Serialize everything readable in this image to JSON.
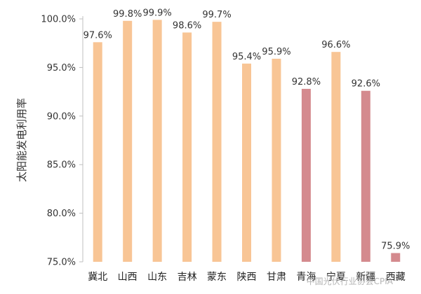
{
  "chart_data": {
    "type": "bar",
    "ylabel": "太阳能发电利用率",
    "ylim": [
      75,
      100
    ],
    "yticks": [
      75,
      80,
      85,
      90,
      95,
      100
    ],
    "ytick_labels": [
      "75.0%",
      "80.0%",
      "85.0%",
      "90.0%",
      "95.0%",
      "100.0%"
    ],
    "categories": [
      "冀北",
      "山西",
      "山东",
      "吉林",
      "蒙东",
      "陕西",
      "甘肃",
      "青海",
      "宁夏",
      "新疆",
      "西藏"
    ],
    "values": [
      97.6,
      99.8,
      99.9,
      98.6,
      99.7,
      95.4,
      95.9,
      92.8,
      96.6,
      92.6,
      75.9
    ],
    "value_labels": [
      "97.6%",
      "99.8%",
      "99.9%",
      "98.6%",
      "99.7%",
      "95.4%",
      "95.9%",
      "92.8%",
      "96.6%",
      "92.6%",
      "75.9%"
    ],
    "highlighted": [
      false,
      false,
      false,
      false,
      false,
      false,
      false,
      true,
      false,
      true,
      true
    ],
    "colors": {
      "bar": "#F8C595",
      "bar_highlight": "#D48A8E",
      "axis": "#bfbfbf"
    },
    "grid": false,
    "legend": "none"
  },
  "watermark": "中国光伏行业协会CPIA"
}
